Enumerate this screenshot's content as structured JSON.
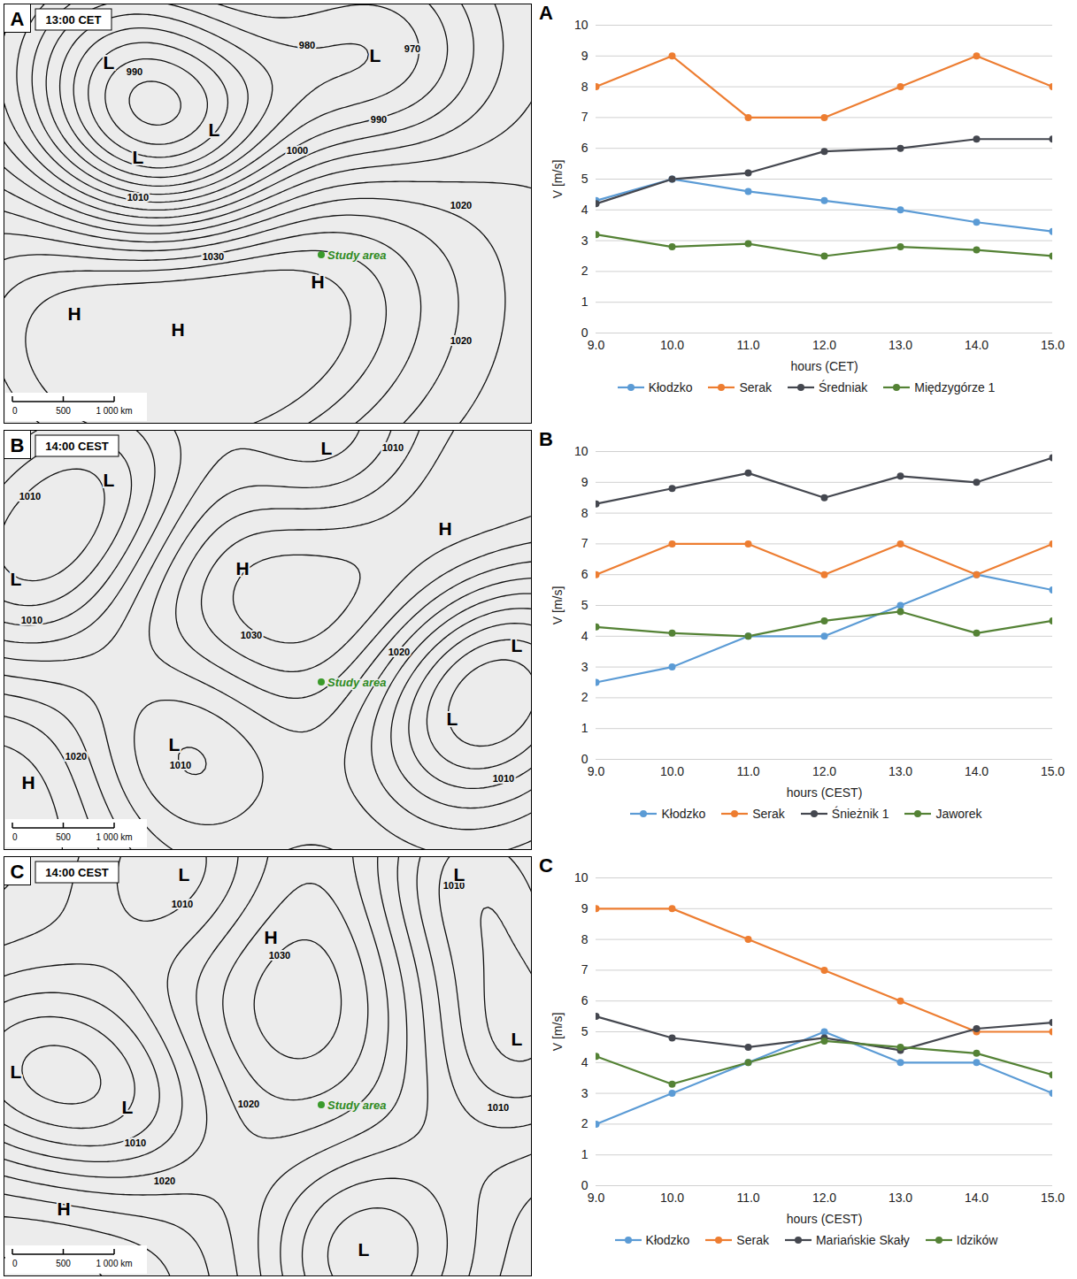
{
  "maps": [
    {
      "letter": "A",
      "time": "13:00 CET",
      "pressure_centres": [
        "L",
        "L",
        "L",
        "L",
        "H",
        "H",
        "H"
      ],
      "isobar_labels": [
        990,
        980,
        970,
        990,
        1000,
        1010,
        1020,
        1030,
        1020
      ],
      "study_area": "Study area",
      "scale": [
        {
          "value": 0,
          "label": "0"
        },
        {
          "value": 500,
          "label": "500"
        },
        {
          "value": 1000,
          "label": "1 000 km"
        }
      ]
    },
    {
      "letter": "B",
      "time": "14:00 CEST",
      "pressure_centres": [
        "L",
        "L",
        "L",
        "H",
        "H",
        "L",
        "L",
        "L",
        "H"
      ],
      "isobar_labels": [
        1010,
        1010,
        1010,
        1030,
        1020,
        1020,
        1010,
        1010
      ],
      "study_area": "Study area",
      "scale": [
        {
          "value": 0,
          "label": "0"
        },
        {
          "value": 500,
          "label": "500"
        },
        {
          "value": 1000,
          "label": "1 000 km"
        }
      ]
    },
    {
      "letter": "C",
      "time": "14:00 CEST",
      "pressure_centres": [
        "L",
        "L",
        "H",
        "L",
        "L",
        "L",
        "H",
        "L"
      ],
      "isobar_labels": [
        1010,
        1010,
        1030,
        1020,
        1010,
        1010,
        1020
      ],
      "study_area": "Study area",
      "scale": [
        {
          "value": 0,
          "label": "0"
        },
        {
          "value": 500,
          "label": "500"
        },
        {
          "value": 1000,
          "label": "1 000 km"
        }
      ]
    }
  ],
  "chart_data": [
    {
      "type": "line",
      "title": "A",
      "xlabel": "hours (CET)",
      "ylabel": "V [m/s]",
      "x": [
        9,
        10,
        11,
        12,
        13,
        14,
        15
      ],
      "xlim": [
        9,
        15
      ],
      "xticks": [
        9,
        10,
        11,
        12,
        13,
        14,
        15
      ],
      "ylim": [
        0,
        10
      ],
      "yticks": [
        0,
        1,
        2,
        3,
        4,
        5,
        6,
        7,
        8,
        9,
        10
      ],
      "grid": true,
      "legend": "bottom",
      "marker": "circle",
      "series": [
        {
          "name": "Kłodzko",
          "color": "#5b9bd5",
          "values": [
            4.3,
            5.0,
            4.6,
            4.3,
            4.0,
            3.6,
            3.3
          ]
        },
        {
          "name": "Serak",
          "color": "#ed7d31",
          "values": [
            8,
            9,
            7,
            7,
            8,
            9,
            8
          ]
        },
        {
          "name": "Średniak",
          "color": "#44474f",
          "values": [
            4.2,
            5.0,
            5.2,
            5.9,
            6.0,
            6.3,
            6.3
          ]
        },
        {
          "name": "Międzygórze 1",
          "color": "#548235",
          "values": [
            3.2,
            2.8,
            2.9,
            2.5,
            2.8,
            2.7,
            2.5
          ]
        }
      ]
    },
    {
      "type": "line",
      "title": "B",
      "xlabel": "hours (CEST)",
      "ylabel": "V [m/s]",
      "x": [
        9,
        10,
        11,
        12,
        13,
        14,
        15
      ],
      "xlim": [
        9,
        15
      ],
      "xticks": [
        9,
        10,
        11,
        12,
        13,
        14,
        15
      ],
      "ylim": [
        0,
        10
      ],
      "yticks": [
        0,
        1,
        2,
        3,
        4,
        5,
        6,
        7,
        8,
        9,
        10
      ],
      "grid": true,
      "legend": "bottom",
      "marker": "circle",
      "series": [
        {
          "name": "Kłodzko",
          "color": "#5b9bd5",
          "values": [
            2.5,
            3.0,
            4.0,
            4.0,
            5.0,
            6.0,
            5.5
          ]
        },
        {
          "name": "Serak",
          "color": "#ed7d31",
          "values": [
            6,
            7,
            7,
            6,
            7,
            6,
            7
          ]
        },
        {
          "name": "Śnieżnik 1",
          "color": "#44474f",
          "values": [
            8.3,
            8.8,
            9.3,
            8.5,
            9.2,
            9.0,
            9.8
          ]
        },
        {
          "name": "Jaworek",
          "color": "#548235",
          "values": [
            4.3,
            4.1,
            4.0,
            4.5,
            4.8,
            4.1,
            4.5
          ]
        }
      ]
    },
    {
      "type": "line",
      "title": "C",
      "xlabel": "hours (CEST)",
      "ylabel": "V [m/s]",
      "x": [
        9,
        10,
        11,
        12,
        13,
        14,
        15
      ],
      "xlim": [
        9,
        15
      ],
      "xticks": [
        9,
        10,
        11,
        12,
        13,
        14,
        15
      ],
      "ylim": [
        0,
        10
      ],
      "yticks": [
        0,
        1,
        2,
        3,
        4,
        5,
        6,
        7,
        8,
        9,
        10
      ],
      "grid": true,
      "legend": "bottom",
      "marker": "circle",
      "series": [
        {
          "name": "Kłodzko",
          "color": "#5b9bd5",
          "values": [
            2,
            3,
            4,
            5,
            4,
            4,
            3
          ]
        },
        {
          "name": "Serak",
          "color": "#ed7d31",
          "values": [
            9,
            9,
            8,
            7,
            6,
            5,
            5
          ]
        },
        {
          "name": "Mariańskie Skały",
          "color": "#44474f",
          "values": [
            5.5,
            4.8,
            4.5,
            4.8,
            4.4,
            5.1,
            5.3
          ]
        },
        {
          "name": "Idzików",
          "color": "#548235",
          "values": [
            4.2,
            3.3,
            4.0,
            4.7,
            4.5,
            4.3,
            3.6
          ]
        }
      ]
    }
  ]
}
